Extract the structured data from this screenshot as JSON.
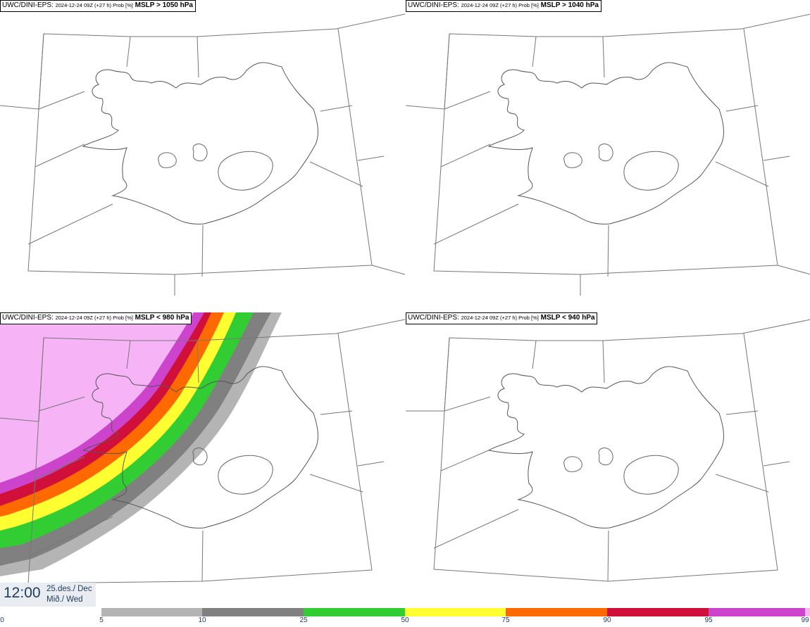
{
  "panels": [
    {
      "source": "UWC/DINI-EPS",
      "meta": "2024-12-24 09Z (+27 h) Prob [%]",
      "variable": "MSLP > 1050 hPa"
    },
    {
      "source": "UWC/DINI-EPS",
      "meta": "2024-12-24 09Z (+27 h) Prob [%]",
      "variable": "MSLP > 1040 hPa"
    },
    {
      "source": "UWC/DINI-EPS",
      "meta": "2024-12-24 09Z (+27 h) Prob [%]",
      "variable": "MSLP < 980 hPa"
    },
    {
      "source": "UWC/DINI-EPS",
      "meta": "2024-12-24 09Z (+27 h) Prob [%]",
      "variable": "MSLP < 940 hPa"
    }
  ],
  "valid_time": {
    "time": "12:00",
    "date": "25.des./ Dec",
    "weekday": "Mið./ Wed"
  },
  "colorbar": {
    "ticks": [
      "0",
      "5",
      "10",
      "25",
      "50",
      "75",
      "90",
      "95",
      "99"
    ],
    "colors": [
      "#b4b4b4",
      "#808080",
      "#32cd32",
      "#ffff32",
      "#ff6a00",
      "#d0103a",
      "#cc44cc",
      "#f6b4f6"
    ]
  }
}
